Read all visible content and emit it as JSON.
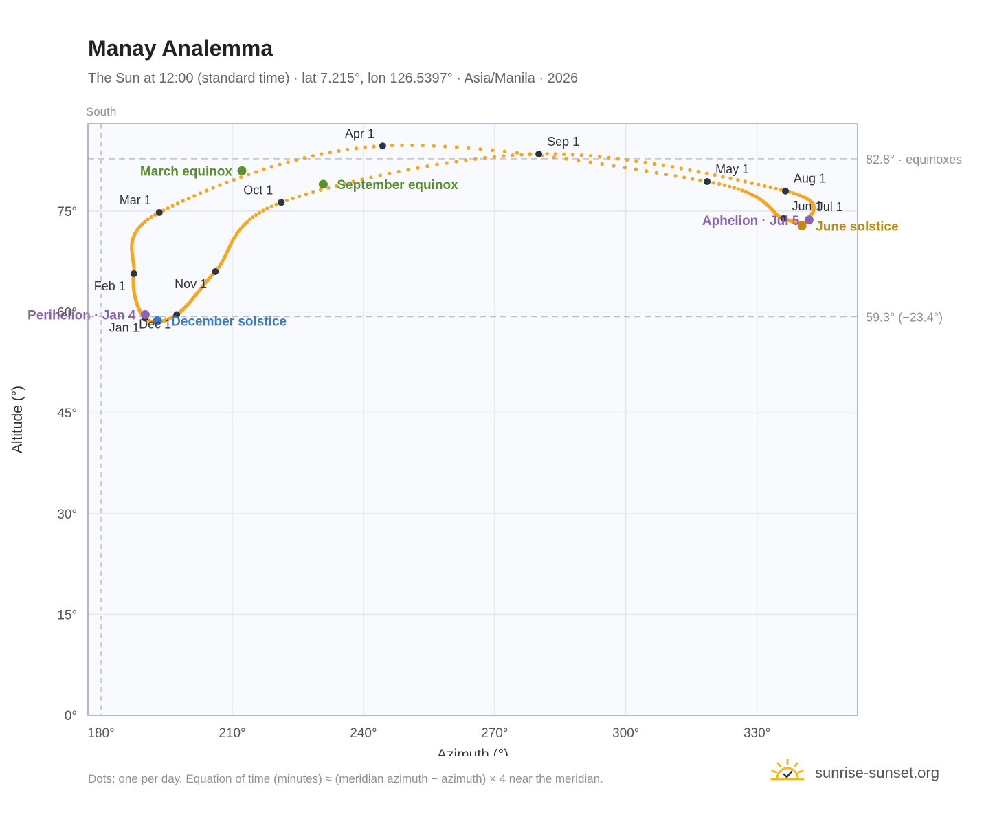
{
  "header": {
    "title": "Manay Analemma",
    "subtitle": "The Sun at 12:00 (standard time) · lat 7.215°, lon 126.5397° · Asia/Manila · 2026"
  },
  "footer": {
    "footnote": "Dots: one per day. Equation of time (minutes) ≈ (meridian azimuth − azimuth) × 4 near the meridian.",
    "brand": "sunrise-sunset.org",
    "brand_icon": "sun-logo-icon"
  },
  "colors": {
    "curve": "#f5a623",
    "month_marker": "#2d3540",
    "equinox": "#5a8f2e",
    "december_solstice": "#3a7bbf",
    "june_solstice": "#c08a14",
    "apsis": "#8e62b3",
    "plot_bg": "#f8fafd",
    "grid": "#e3e8ee",
    "axis_frame": "#9aa3ae",
    "reference_line": "#b9c1cb"
  },
  "chart_data": {
    "type": "scatter",
    "xlabel": "Azimuth (°)",
    "ylabel": "Altitude (°)",
    "xlim": [
      177,
      353
    ],
    "ylim": [
      0,
      88
    ],
    "x_ticks": [
      {
        "value": 180,
        "label": "180°"
      },
      {
        "value": 210,
        "label": "210°"
      },
      {
        "value": 240,
        "label": "240°"
      },
      {
        "value": 270,
        "label": "270°"
      },
      {
        "value": 300,
        "label": "300°"
      },
      {
        "value": 330,
        "label": "330°"
      }
    ],
    "y_ticks": [
      {
        "value": 0,
        "label": "0°"
      },
      {
        "value": 15,
        "label": "15°"
      },
      {
        "value": 30,
        "label": "30°"
      },
      {
        "value": 45,
        "label": "45°"
      },
      {
        "value": 60,
        "label": "60°"
      },
      {
        "value": 75,
        "label": "75°"
      }
    ],
    "grid": true,
    "meridian": {
      "azimuth": 180,
      "label": "South"
    },
    "reference_lines": [
      {
        "altitude": 82.8,
        "label": "82.8° · equinoxes"
      },
      {
        "altitude": 59.3,
        "label": "59.3° (−23.4°)"
      }
    ],
    "daily_series": {
      "name": "",
      "marker": "one dot per day",
      "days_in_months": [
        31,
        28,
        31,
        30,
        31,
        30,
        31,
        31,
        30,
        31,
        30,
        31
      ],
      "month_start_points": [
        {
          "label": "Jan 1",
          "azimuth": 190.0,
          "altitude": 59.1
        },
        {
          "label": "Feb 1",
          "azimuth": 187.5,
          "altitude": 65.7
        },
        {
          "label": "Mar 1",
          "azimuth": 193.3,
          "altitude": 74.8
        },
        {
          "label": "Apr 1",
          "azimuth": 244.4,
          "altitude": 84.7
        },
        {
          "label": "May 1",
          "azimuth": 318.6,
          "altitude": 79.4
        },
        {
          "label": "Jun 1",
          "azimuth": 336.1,
          "altitude": 73.9
        },
        {
          "label": "Jul 1",
          "azimuth": 341.8,
          "altitude": 73.8
        },
        {
          "label": "Aug 1",
          "azimuth": 336.5,
          "altitude": 78.0
        },
        {
          "label": "Sep 1",
          "azimuth": 280.1,
          "altitude": 83.5
        },
        {
          "label": "Oct 1",
          "azimuth": 221.2,
          "altitude": 76.3
        },
        {
          "label": "Nov 1",
          "azimuth": 206.1,
          "altitude": 66.0
        },
        {
          "label": "Dec 1",
          "azimuth": 197.3,
          "altitude": 59.6
        }
      ],
      "month_label_placement": [
        "below-left",
        "left",
        "above-left",
        "above-left",
        "above-right",
        "above-right",
        "above-right",
        "above-right",
        "above-right",
        "above-left",
        "left",
        "below-left"
      ]
    },
    "events": [
      {
        "label": "March equinox",
        "azimuth": 212.2,
        "altitude": 81.0,
        "color_key": "equinox",
        "label_side": "left"
      },
      {
        "label": "September equinox",
        "azimuth": 230.8,
        "altitude": 79.0,
        "color_key": "equinox",
        "label_side": "right"
      },
      {
        "label": "December solstice",
        "azimuth": 192.9,
        "altitude": 58.7,
        "color_key": "december_solstice",
        "label_side": "right"
      },
      {
        "label": "June solstice",
        "azimuth": 340.3,
        "altitude": 72.8,
        "color_key": "june_solstice",
        "label_side": "right"
      },
      {
        "label": "Perihelion · Jan 4",
        "azimuth": 190.1,
        "altitude": 59.6,
        "color_key": "apsis",
        "label_side": "left"
      },
      {
        "label": "Aphelion · Jul 5",
        "azimuth": 341.9,
        "altitude": 73.7,
        "color_key": "apsis",
        "label_side": "left"
      }
    ]
  }
}
